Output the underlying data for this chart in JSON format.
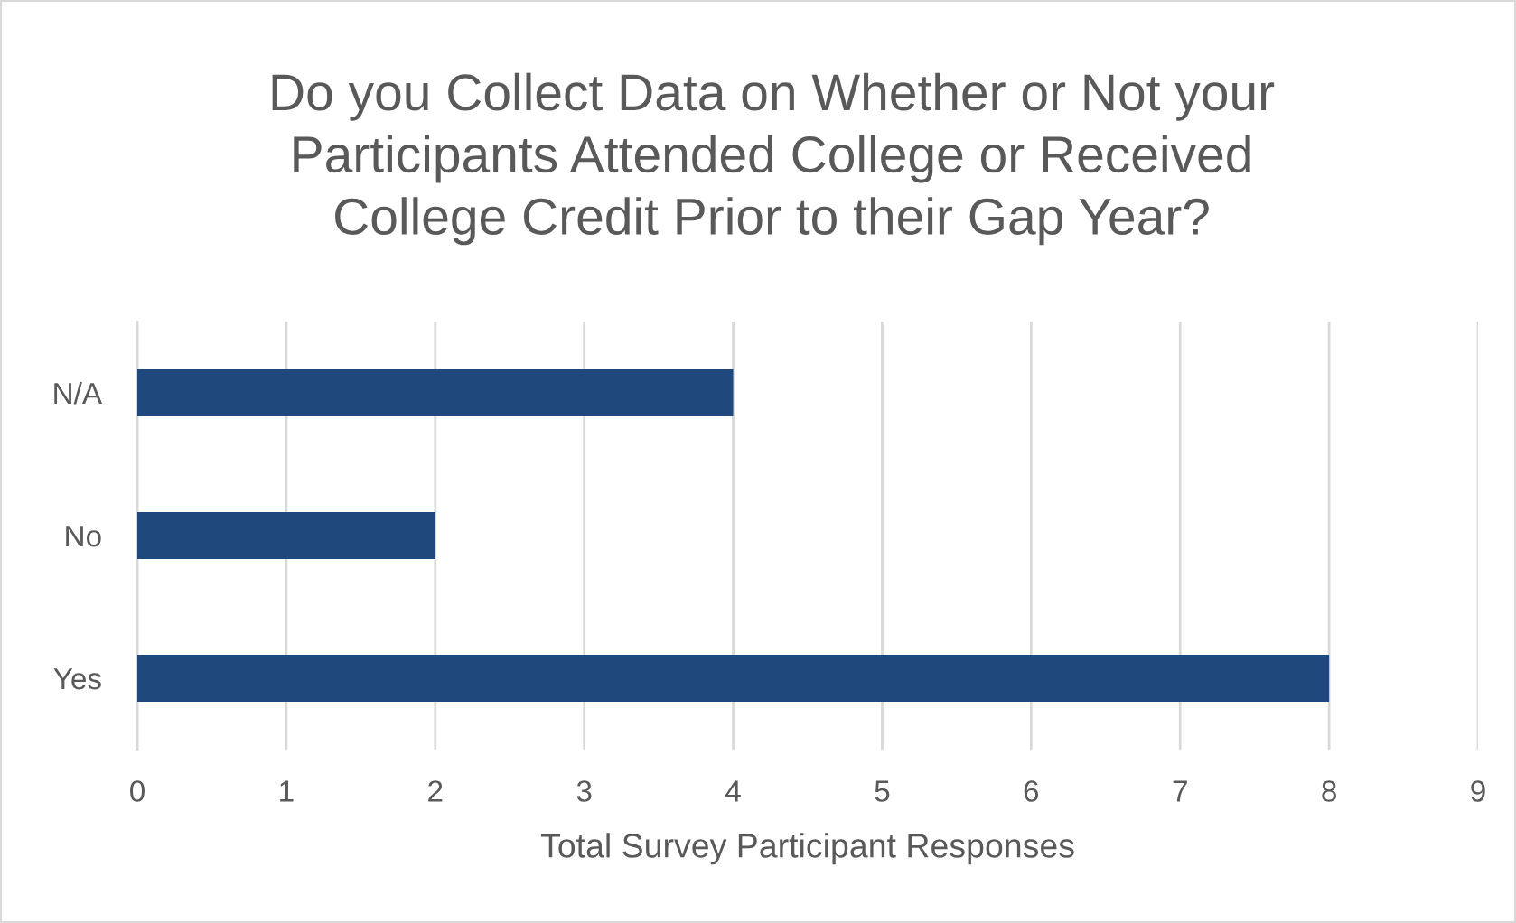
{
  "chart_data": {
    "type": "bar",
    "orientation": "horizontal",
    "title": "Do you Collect Data on Whether or Not your\nParticipants Attended College or Received\nCollege Credit Prior to their Gap Year?",
    "xlabel": "Total Survey Participant Responses",
    "categories": [
      "N/A",
      "No",
      "Yes"
    ],
    "values": [
      4,
      2,
      8
    ],
    "color": "#1f497d",
    "xlim": [
      0,
      9
    ],
    "xticks": [
      0,
      1,
      2,
      3,
      4,
      5,
      6,
      7,
      8,
      9
    ],
    "grid": "x"
  }
}
